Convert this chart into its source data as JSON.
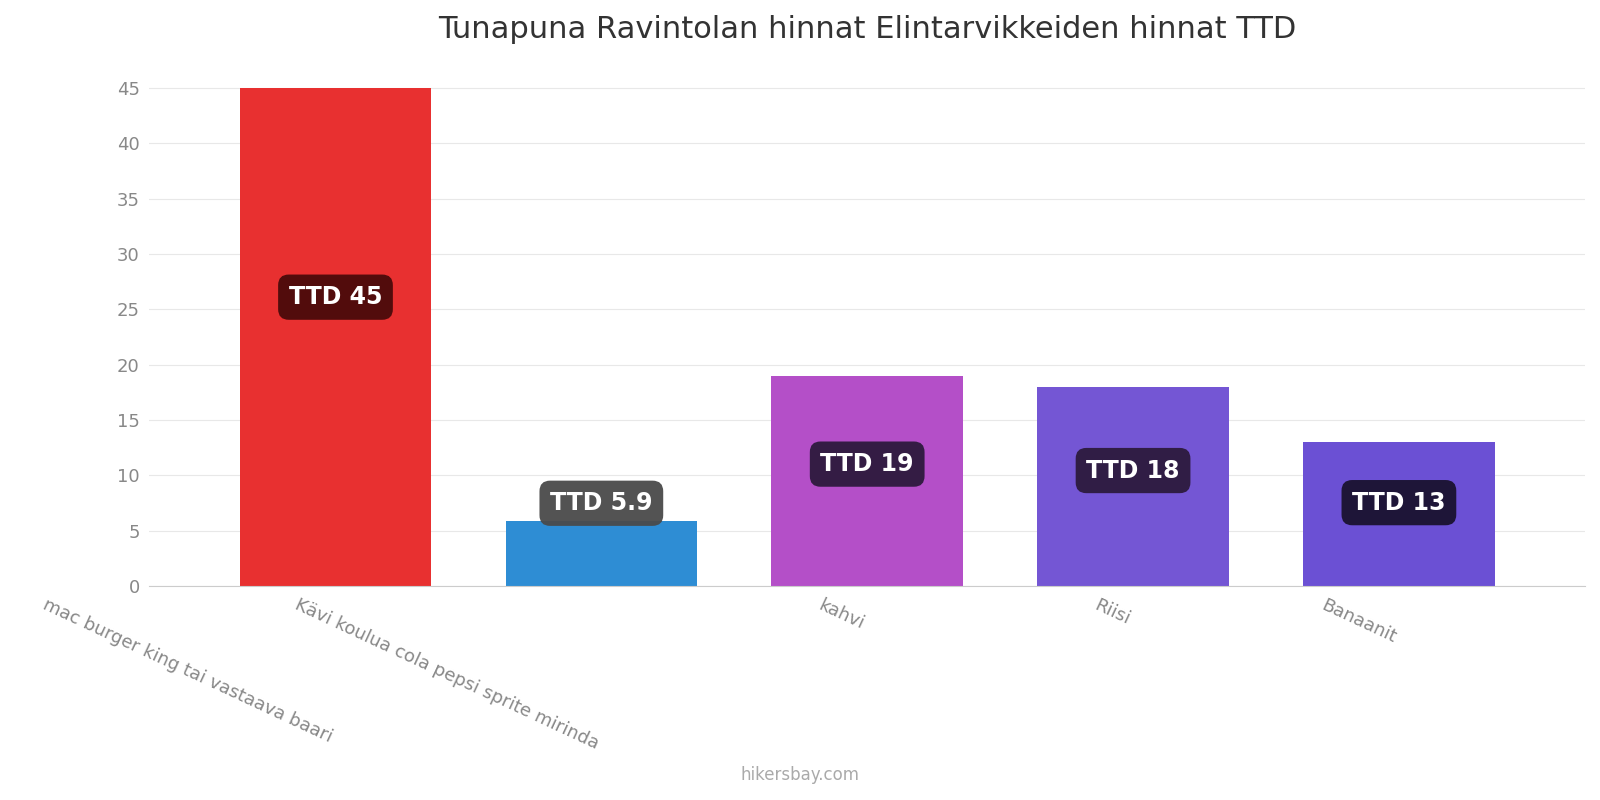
{
  "title": "Tunapuna Ravintolan hinnat Elintarvikkeiden hinnat TTD",
  "categories": [
    "mac burger king tai vastaava baari",
    "Kävi koulua cola pepsi sprite mirinda",
    "kahvi",
    "Riisi",
    "Banaanit"
  ],
  "values": [
    45,
    5.9,
    19,
    18,
    13
  ],
  "bar_colors": [
    "#e83030",
    "#2e8dd4",
    "#b44fc8",
    "#7456d4",
    "#6b50d4"
  ],
  "label_texts": [
    "TTD 45",
    "TTD 5.9",
    "TTD 19",
    "TTD 18",
    "TTD 13"
  ],
  "label_bg_colors": [
    "#4a0a0a",
    "#4a4a4a",
    "#2d1a3d",
    "#2d1a3d",
    "#1a1230"
  ],
  "ylim": [
    0,
    47
  ],
  "yticks": [
    0,
    5,
    10,
    15,
    20,
    25,
    30,
    35,
    40,
    45
  ],
  "watermark": "hikersbay.com",
  "background_color": "#ffffff",
  "title_fontsize": 22,
  "label_fontsize": 17,
  "tick_label_fontsize": 13,
  "xtick_rotation": -25,
  "bar_width": 0.72
}
